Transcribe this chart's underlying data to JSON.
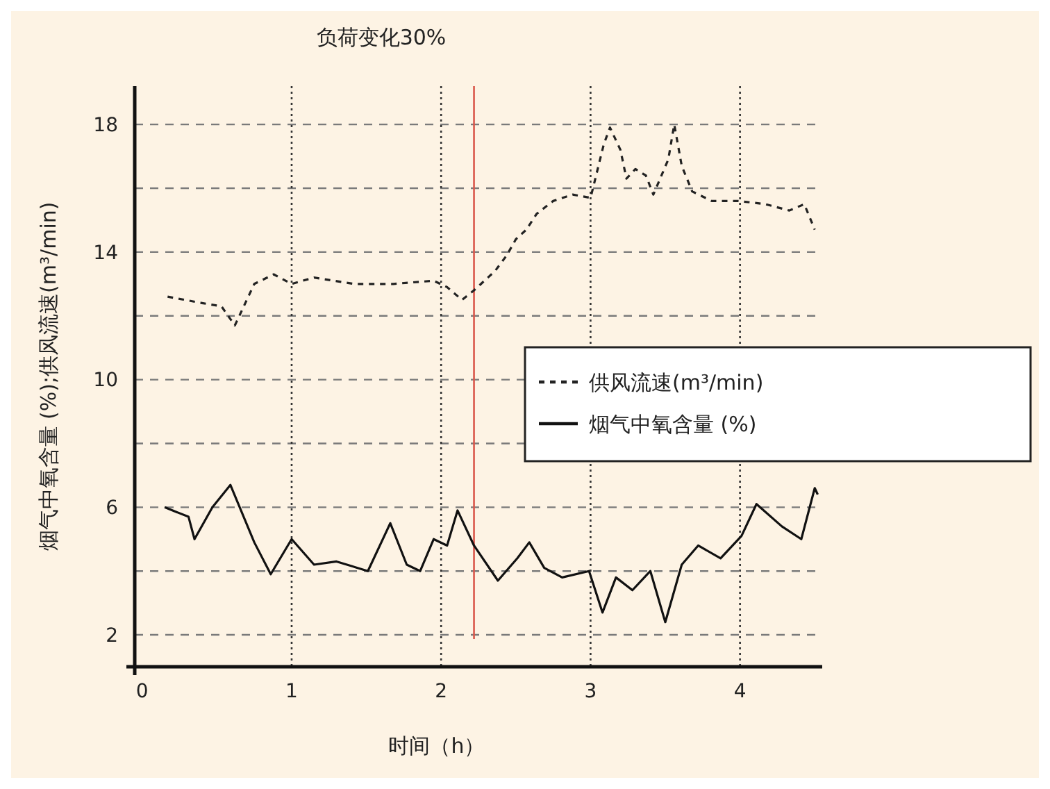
{
  "chart_data": {
    "type": "line",
    "title": "负荷变化30%",
    "xlabel": "时间（h）",
    "ylabel": "烟气中氧含量 (%);供风流速(m³/min)",
    "xlim": [
      -0.05,
      4.55
    ],
    "xticks": [
      0,
      1,
      2,
      3,
      4
    ],
    "ylim": [
      1,
      19.2
    ],
    "yticks": [
      2,
      {
        "value": 4,
        "label": null
      },
      6,
      {
        "value": 8,
        "label": null
      },
      10,
      {
        "value": 12,
        "label": null
      },
      14,
      {
        "value": 16,
        "label": null
      },
      18
    ],
    "grid": true,
    "legend": "right",
    "ref_lines": [
      {
        "axis": "x",
        "value": 2.22,
        "color": "#d9574a"
      }
    ],
    "series": [
      {
        "name": "供风流速(m³/min)",
        "color": "#222222",
        "line_style": "dashed",
        "x": [
          0.17,
          0.4,
          0.53,
          0.62,
          0.75,
          0.88,
          1.0,
          1.15,
          1.28,
          1.42,
          1.68,
          1.95,
          2.04,
          2.14,
          2.22,
          2.36,
          2.44,
          2.5,
          2.57,
          2.64,
          2.75,
          2.88,
          3.0,
          3.09,
          3.13,
          3.2,
          3.24,
          3.3,
          3.37,
          3.42,
          3.52,
          3.56,
          3.61,
          3.68,
          3.81,
          3.99,
          4.17,
          4.33,
          4.43,
          4.5
        ],
        "values": [
          12.6,
          12.4,
          12.3,
          11.7,
          13.0,
          13.3,
          13.0,
          13.2,
          13.1,
          13.0,
          13.0,
          13.1,
          12.9,
          12.5,
          12.8,
          13.4,
          13.9,
          14.4,
          14.7,
          15.2,
          15.6,
          15.8,
          15.7,
          17.4,
          17.9,
          17.2,
          16.3,
          16.6,
          16.4,
          15.8,
          16.9,
          18.0,
          16.7,
          15.9,
          15.6,
          15.6,
          15.5,
          15.3,
          15.5,
          14.7
        ]
      },
      {
        "name": "烟气中氧含量 (%)",
        "color": "#111111",
        "line_style": "solid",
        "x": [
          0.15,
          0.31,
          0.35,
          0.47,
          0.59,
          0.75,
          0.86,
          1.0,
          1.15,
          1.3,
          1.51,
          1.66,
          1.77,
          1.86,
          1.95,
          2.04,
          2.11,
          2.22,
          2.38,
          2.51,
          2.59,
          2.69,
          2.81,
          2.99,
          3.08,
          3.17,
          3.28,
          3.4,
          3.5,
          3.61,
          3.72,
          3.87,
          4.01,
          4.11,
          4.28,
          4.41,
          4.5,
          4.52
        ],
        "values": [
          6.0,
          5.7,
          5.0,
          6.0,
          6.7,
          4.9,
          3.9,
          5.0,
          4.2,
          4.3,
          4.0,
          5.5,
          4.2,
          4.0,
          5.0,
          4.8,
          5.9,
          4.8,
          3.7,
          4.4,
          4.9,
          4.1,
          3.8,
          4.0,
          2.7,
          3.8,
          3.4,
          4.0,
          2.4,
          4.2,
          4.8,
          4.4,
          5.1,
          6.1,
          5.4,
          5.0,
          6.6,
          6.4
        ]
      }
    ]
  }
}
